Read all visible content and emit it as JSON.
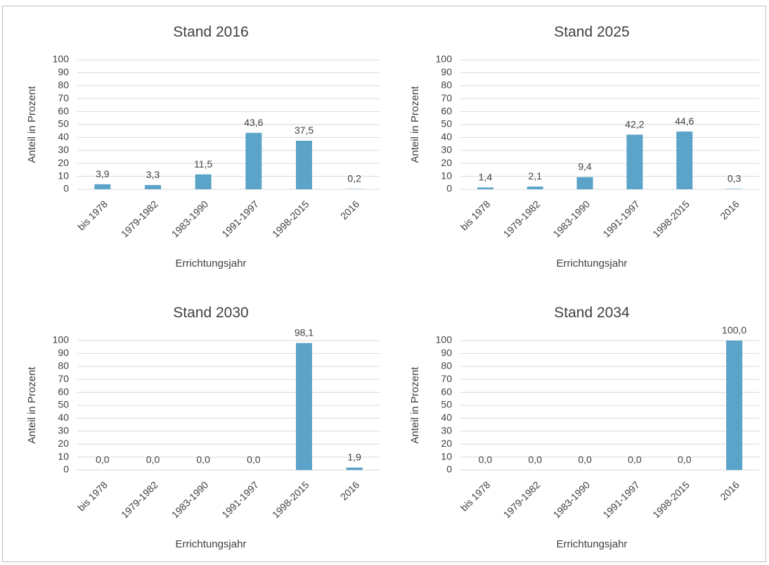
{
  "chart_data": [
    {
      "type": "bar",
      "title": "Stand 2016",
      "xlabel": "Errichtungsjahr",
      "ylabel": "Anteil in Prozent",
      "categories": [
        "bis 1978",
        "1979-1982",
        "1983-1990",
        "1991-1997",
        "1998-2015",
        "2016"
      ],
      "values": [
        3.9,
        3.3,
        11.5,
        43.6,
        37.5,
        0.2
      ],
      "data_labels": [
        "3,9",
        "3,3",
        "11,5",
        "43,6",
        "37,5",
        "0,2"
      ],
      "yticks": [
        0,
        10,
        20,
        30,
        40,
        50,
        60,
        70,
        80,
        90,
        100
      ],
      "ylim": [
        0,
        100
      ],
      "grid": true,
      "color": "#5ba3c9"
    },
    {
      "type": "bar",
      "title": "Stand 2025",
      "xlabel": "Errichtungsjahr",
      "ylabel": "Anteil in Prozent",
      "categories": [
        "bis 1978",
        "1979-1982",
        "1983-1990",
        "1991-1997",
        "1998-2015",
        "2016"
      ],
      "values": [
        1.4,
        2.1,
        9.4,
        42.2,
        44.6,
        0.3
      ],
      "data_labels": [
        "1,4",
        "2,1",
        "9,4",
        "42,2",
        "44,6",
        "0,3"
      ],
      "yticks": [
        0,
        10,
        20,
        30,
        40,
        50,
        60,
        70,
        80,
        90,
        100
      ],
      "ylim": [
        0,
        100
      ],
      "grid": true,
      "color": "#5ba3c9"
    },
    {
      "type": "bar",
      "title": "Stand 2030",
      "xlabel": "Errichtungsjahr",
      "ylabel": "Anteil in Prozent",
      "categories": [
        "bis 1978",
        "1979-1982",
        "1983-1990",
        "1991-1997",
        "1998-2015",
        "2016"
      ],
      "values": [
        0.0,
        0.0,
        0.0,
        0.0,
        98.1,
        1.9
      ],
      "data_labels": [
        "0,0",
        "0,0",
        "0,0",
        "0,0",
        "98,1",
        "1,9"
      ],
      "yticks": [
        0,
        10,
        20,
        30,
        40,
        50,
        60,
        70,
        80,
        90,
        100
      ],
      "ylim": [
        0,
        100
      ],
      "grid": true,
      "color": "#5ba3c9"
    },
    {
      "type": "bar",
      "title": "Stand 2034",
      "xlabel": "Errichtungsjahr",
      "ylabel": "Anteil in Prozent",
      "categories": [
        "bis 1978",
        "1979-1982",
        "1983-1990",
        "1991-1997",
        "1998-2015",
        "2016"
      ],
      "values": [
        0.0,
        0.0,
        0.0,
        0.0,
        0.0,
        100.0
      ],
      "data_labels": [
        "0,0",
        "0,0",
        "0,0",
        "0,0",
        "0,0",
        "100,0"
      ],
      "yticks": [
        0,
        10,
        20,
        30,
        40,
        50,
        60,
        70,
        80,
        90,
        100
      ],
      "ylim": [
        0,
        100
      ],
      "grid": true,
      "color": "#5ba3c9"
    }
  ]
}
